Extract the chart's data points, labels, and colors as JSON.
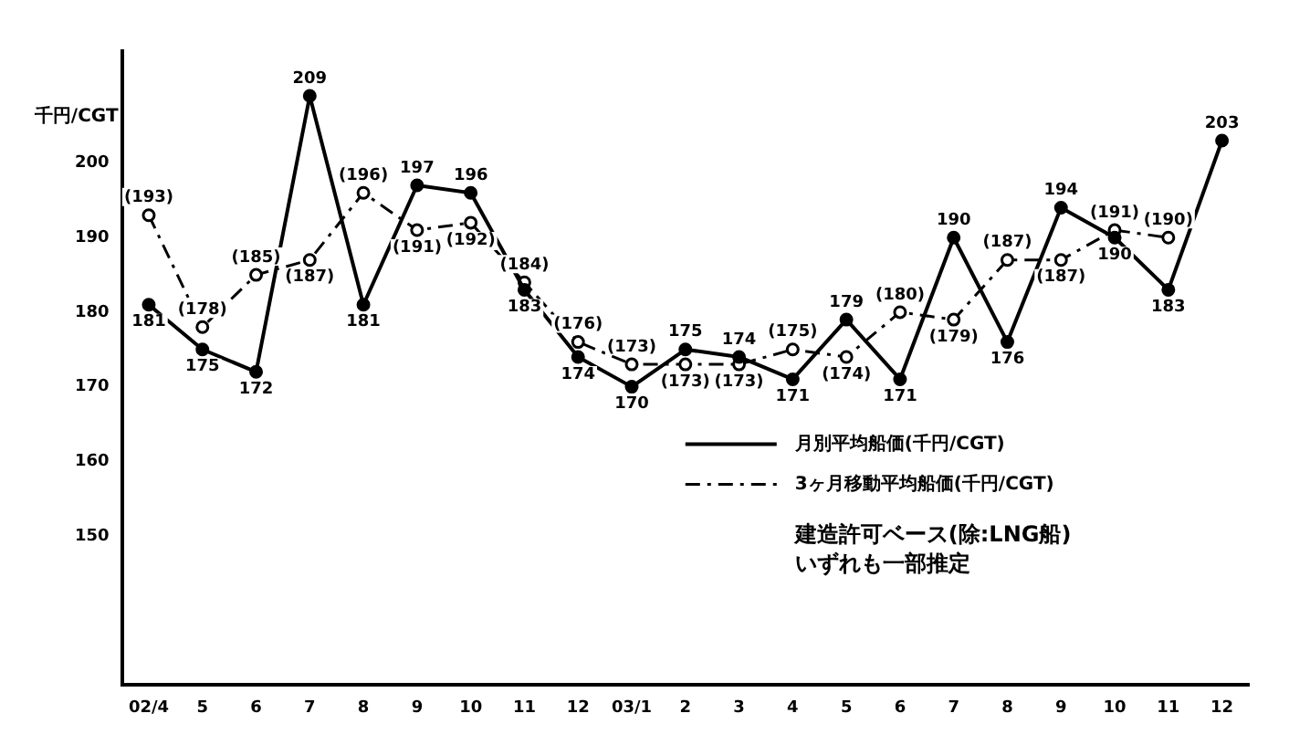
{
  "chart_data": {
    "type": "line",
    "ylabel": "千円/CGT",
    "categories": [
      "02/4",
      "5",
      "6",
      "7",
      "8",
      "9",
      "10",
      "11",
      "12",
      "03/1",
      "2",
      "3",
      "4",
      "5",
      "6",
      "7",
      "8",
      "9",
      "10",
      "11",
      "12"
    ],
    "series": [
      {
        "name": "月別平均船価(千円/CGT)",
        "color": "#000000",
        "marker": "circle",
        "line_style": "solid",
        "values": [
          181,
          175,
          172,
          209,
          181,
          197,
          196,
          183,
          174,
          170,
          175,
          174,
          171,
          179,
          171,
          190,
          176,
          194,
          190,
          183,
          203
        ],
        "value_labels": [
          "181",
          "175",
          "172",
          "209",
          "181",
          "197",
          "196",
          "183",
          "174",
          "170",
          "175",
          "174",
          "171",
          "179",
          "171",
          "190",
          "176",
          "194",
          "190",
          "183",
          "203"
        ]
      },
      {
        "name": "3ヶ月移動平均船価(千円/CGT)",
        "color": "#000000",
        "marker": "circle",
        "line_style": "dashed",
        "values": [
          193,
          178,
          185,
          187,
          196,
          191,
          192,
          184,
          176,
          173,
          173,
          173,
          175,
          174,
          180,
          179,
          187,
          187,
          191,
          190,
          null
        ],
        "value_labels": [
          "(193)",
          "(178)",
          "(185)",
          "(187)",
          "(196)",
          "(191)",
          "(192)",
          "(184)",
          "(176)",
          "(173)",
          "(173)",
          "(173)",
          "(175)",
          "(174)",
          "(180)",
          "(179)",
          "(187)",
          "(187)",
          "(191)",
          "(190)",
          null
        ]
      }
    ],
    "ylim": [
      130,
      215
    ],
    "yticks": [
      150,
      160,
      170,
      180,
      190,
      200
    ],
    "grid": false,
    "legend": "bottom right",
    "annotations": [
      "建造許可ベース(除:LNG船)",
      "いずれも一部推定"
    ]
  }
}
